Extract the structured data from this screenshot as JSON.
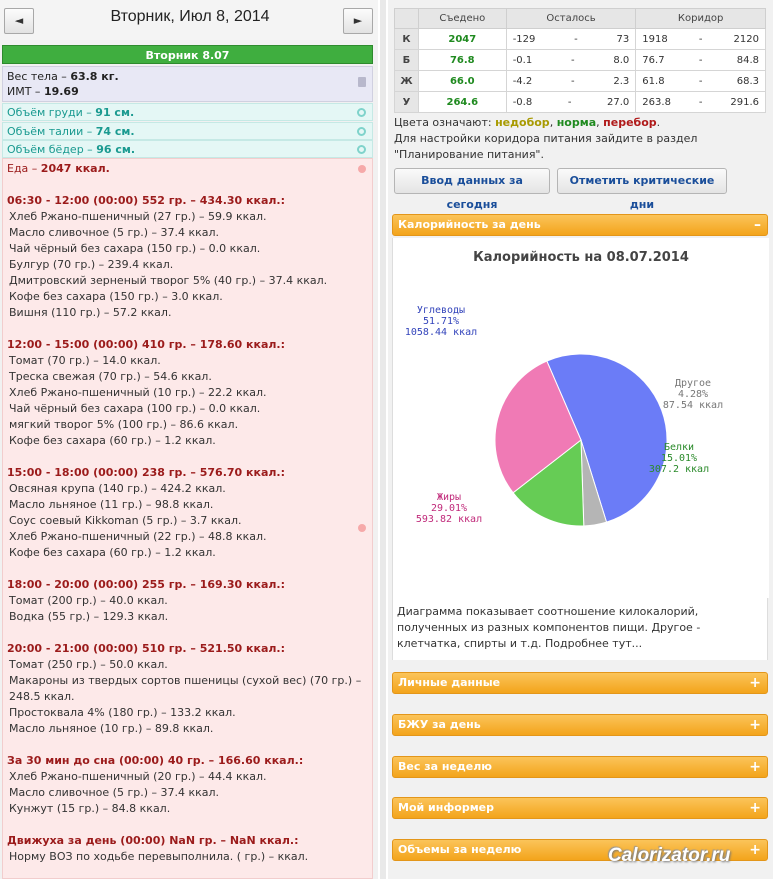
{
  "header": {
    "date_title": "Вторник, Июл 8, 2014",
    "prev_label": "◄",
    "next_label": "►"
  },
  "day_bar": "Вторник 8.07",
  "body": {
    "weight_label": "Вес тела – ",
    "weight_value": "63.8 кг.",
    "bmi_label": "ИМТ – ",
    "bmi_value": "19.69",
    "chest_label": "Объём груди – ",
    "chest_value": "91 см.",
    "waist_label": "Объём талии – ",
    "waist_value": "74 см.",
    "hips_label": "Объём бёдер – ",
    "hips_value": "96 см."
  },
  "food": {
    "total_label": "Еда – ",
    "total_value": "2047 ккал.",
    "meals": [
      {
        "title": "06:30 - 12:00 (00:00) 552 гр. – 434.30 ккал.:",
        "items": [
          "Хлеб Ржано-пшеничный (27 гр.) – 59.9 ккал.",
          "Масло сливочное (5 гр.) – 37.4 ккал.",
          "Чай чёрный без сахара (150 гр.) – 0.0 ккал.",
          "Булгур (70 гр.) – 239.4 ккал.",
          "Дмитровский зерненый творог 5% (40 гр.) – 37.4 ккал.",
          "Кофе без сахара (150 гр.) – 3.0 ккал.",
          "Вишня (110 гр.) – 57.2 ккал."
        ]
      },
      {
        "title": "12:00 - 15:00 (00:00) 410 гр. – 178.60 ккал.:",
        "items": [
          "Томат (70 гр.) – 14.0 ккал.",
          "Треска свежая (70 гр.) – 54.6 ккал.",
          "Хлеб Ржано-пшеничный (10 гр.) – 22.2 ккал.",
          "Чай чёрный без сахара (100 гр.) – 0.0 ккал.",
          "мягкий творог 5% (100 гр.) – 86.6 ккал.",
          "Кофе без сахара (60 гр.) – 1.2 ккал."
        ]
      },
      {
        "title": "15:00 - 18:00 (00:00) 238 гр. – 576.70 ккал.:",
        "items": [
          "Овсяная крупа (140 гр.) – 424.2 ккал.",
          "Масло льняное (11 гр.) – 98.8 ккал.",
          "Соус соевый Kikkoman (5 гр.) – 3.7 ккал.",
          "Хлеб Ржано-пшеничный (22 гр.) – 48.8 ккал.",
          "Кофе без сахара (60 гр.) – 1.2 ккал."
        ]
      },
      {
        "title": "18:00 - 20:00 (00:00) 255 гр. – 169.30 ккал.:",
        "items": [
          "Томат (200 гр.) – 40.0 ккал.",
          "Водка (55 гр.) – 129.3 ккал."
        ]
      },
      {
        "title": "20:00 - 21:00 (00:00) 510 гр. – 521.50 ккал.:",
        "items": [
          "Томат (250 гр.) – 50.0 ккал.",
          "Макароны из твердых сортов пшеницы (сухой вес) (70 гр.) – 248.5 ккал.",
          "Простоквала 4% (180 гр.) – 133.2 ккал.",
          "Масло льняное (10 гр.) – 89.8 ккал."
        ]
      },
      {
        "title": "За 30 мин до сна (00:00) 40 гр. – 166.60 ккал.:",
        "items": [
          "Хлеб Ржано-пшеничный (20 гр.) – 44.4 ккал.",
          "Масло сливочное (5 гр.) – 37.4 ккал.",
          "Кунжут (15 гр.) – 84.8 ккал."
        ]
      },
      {
        "title": "Движуха за день (00:00) NaN гр. – NaN ккал.:",
        "items": [
          "Норму ВОЗ по ходьбе перевыполнила. ( гр.) – ккал."
        ]
      }
    ]
  },
  "nutrition": {
    "headers": [
      "",
      "Съедено",
      "Осталось",
      "Коридор"
    ],
    "rows": [
      {
        "label": "К",
        "eaten": "2047",
        "rest_from": "-129",
        "rest_to": "73",
        "corr_from": "1918",
        "corr_to": "2120"
      },
      {
        "label": "Б",
        "eaten": "76.8",
        "rest_from": "-0.1",
        "rest_to": "8.0",
        "corr_from": "76.7",
        "corr_to": "84.8"
      },
      {
        "label": "Ж",
        "eaten": "66.0",
        "rest_from": "-4.2",
        "rest_to": "2.3",
        "corr_from": "61.8",
        "corr_to": "68.3"
      },
      {
        "label": "У",
        "eaten": "264.6",
        "rest_from": "-0.8",
        "rest_to": "27.0",
        "corr_from": "263.8",
        "corr_to": "291.6"
      }
    ],
    "dash": "-"
  },
  "legend": {
    "prefix": "Цвета означают: ",
    "under": "недобор",
    "sep1": ", ",
    "norm": "норма",
    "sep2": ", ",
    "over": "перебор",
    "end": ".",
    "note": "Для настройки коридора питания зайдите в раздел \"Планирование питания\"."
  },
  "buttons": {
    "today": "Ввод данных за сегодня",
    "critical": "Отметить критические дни"
  },
  "calorie_section": {
    "title": "Калорийность за день",
    "sign": "–"
  },
  "chart_data": {
    "type": "pie",
    "title": "Калорийность на 08.07.2014",
    "slices": [
      {
        "name": "Углеводы",
        "percent": 51.71,
        "kcal": 1058.44,
        "pct_label": "51.71%",
        "kcal_label": "1058.44 ккал",
        "color": "#6b7cf7"
      },
      {
        "name": "Другое",
        "percent": 4.28,
        "kcal": 87.54,
        "pct_label": "4.28%",
        "kcal_label": "87.54 ккал",
        "color": "#b5b5b5"
      },
      {
        "name": "Белки",
        "percent": 15.01,
        "kcal": 307.2,
        "pct_label": "15.01%",
        "kcal_label": "307.2 ккал",
        "color": "#66cc55"
      },
      {
        "name": "Жиры",
        "percent": 29.01,
        "kcal": 593.82,
        "pct_label": "29.01%",
        "kcal_label": "593.82 ккал",
        "color": "#f07ab5"
      }
    ],
    "label_colors": {
      "Углеводы": "#3344bb",
      "Другое": "#777777",
      "Белки": "#2a8a2a",
      "Жиры": "#c02a7a"
    }
  },
  "chart_desc": "Диаграмма показывает соотношение килокалорий, полученных из разных компонентов пищи. Другое - клетчатка, спирты и т.д. Подробнее тут...",
  "sections": [
    {
      "title": "Личные данные",
      "sign": "+"
    },
    {
      "title": "БЖУ за день",
      "sign": "+"
    },
    {
      "title": "Вес за неделю",
      "sign": "+"
    },
    {
      "title": "Мой информер",
      "sign": "+"
    },
    {
      "title": "Объемы за неделю",
      "sign": "+"
    }
  ],
  "watermark": "Calorizator.ru"
}
